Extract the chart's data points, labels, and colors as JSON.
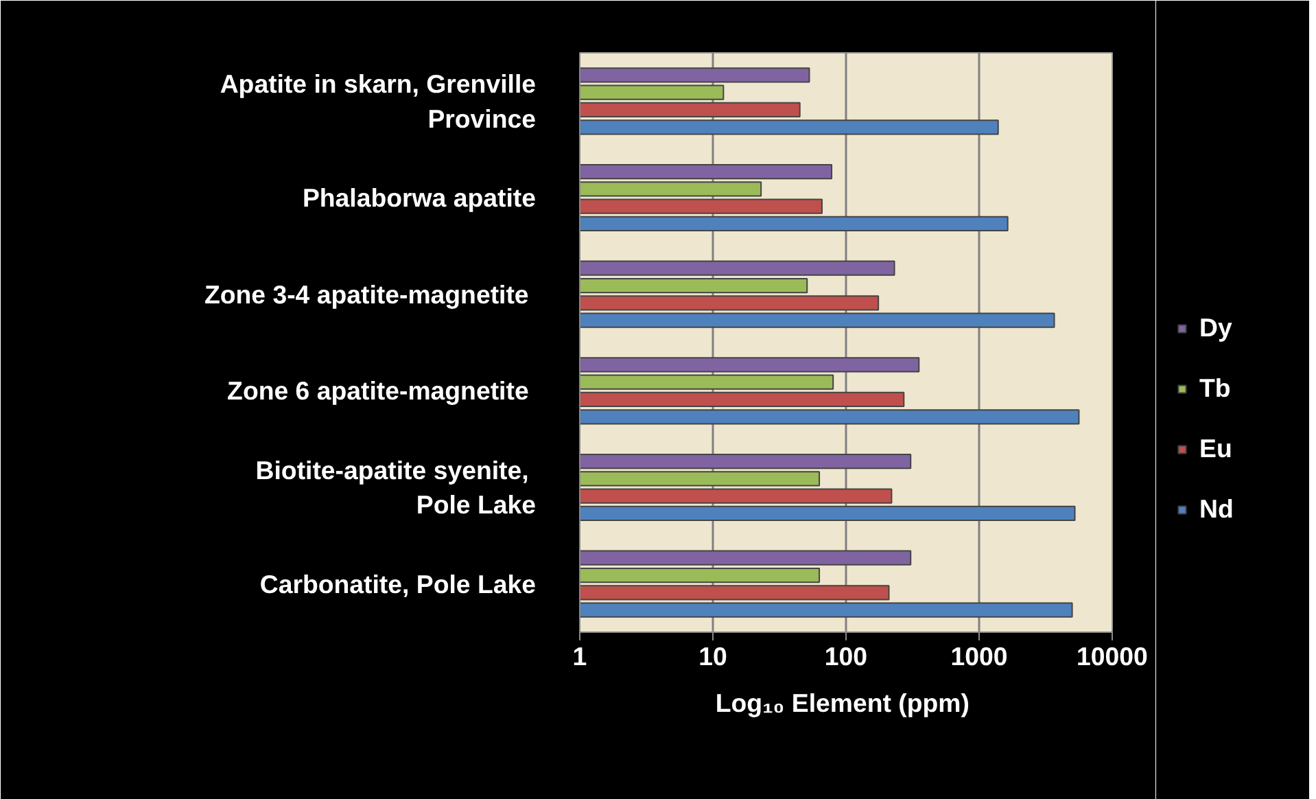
{
  "chart_data": {
    "type": "bar",
    "orientation": "horizontal",
    "log": "x",
    "xlabel": "Log₁₀  Element (ppm)",
    "categories": [
      "Apatite in skarn, Grenville Province",
      "Phalaborwa apatite",
      "Zone 3-4 apatite-magnetite ",
      "Zone 6 apatite-magnetite ",
      "Biotite-apatite syenite,  Pole Lake",
      "Carbonatite, Pole Lake"
    ],
    "series": [
      {
        "name": "Dy",
        "color": "#8064a2",
        "values": [
          53,
          78,
          231,
          353,
          306,
          306
        ]
      },
      {
        "name": "Tb",
        "color": "#9bbb59",
        "values": [
          12,
          23,
          51,
          80,
          63,
          63
        ]
      },
      {
        "name": "Eu",
        "color": "#c0504d",
        "values": [
          45,
          66,
          175,
          272,
          220,
          210
        ]
      },
      {
        "name": "Nd",
        "color": "#4f81bd",
        "values": [
          1390,
          1640,
          3670,
          5620,
          5240,
          5000
        ]
      }
    ],
    "xlim": [
      1,
      10000
    ],
    "xticks": [
      1,
      10,
      100,
      1000,
      10000
    ],
    "grid": "x",
    "legend": "right"
  }
}
